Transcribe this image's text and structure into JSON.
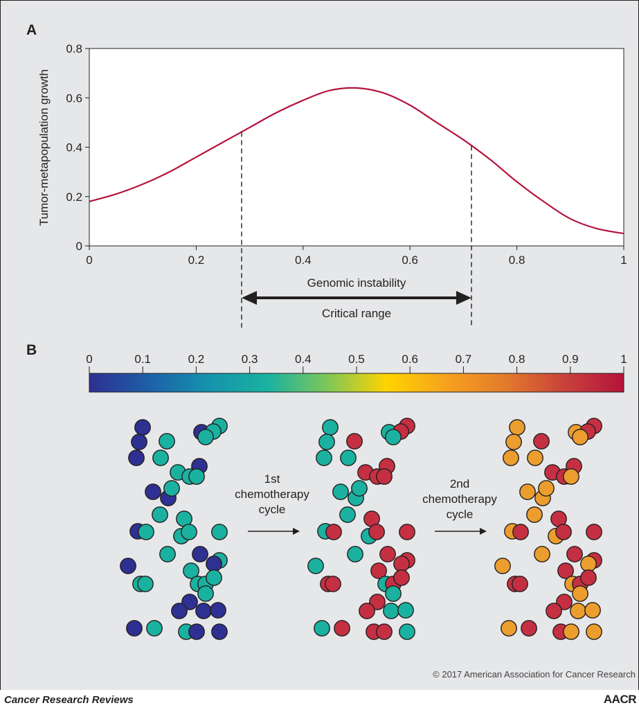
{
  "panels": {
    "a": "A",
    "b": "B"
  },
  "chart_data": {
    "type": "line",
    "xlabel": "Genomic instability",
    "ylabel": "Tumor-metapopulation growth",
    "xlim": [
      0,
      1
    ],
    "ylim": [
      0,
      0.8
    ],
    "xticks": [
      "0",
      "0.2",
      "0.4",
      "0.6",
      "0.8",
      "1"
    ],
    "yticks": [
      "0",
      "0.2",
      "0.4",
      "0.6",
      "0.8"
    ],
    "grid": false,
    "series": [
      {
        "color": "#b5133b",
        "x": [
          0,
          0.05,
          0.1,
          0.15,
          0.2,
          0.25,
          0.3,
          0.35,
          0.4,
          0.45,
          0.5,
          0.55,
          0.6,
          0.65,
          0.7,
          0.75,
          0.8,
          0.85,
          0.9,
          0.95,
          1.0
        ],
        "y": [
          0.18,
          0.21,
          0.25,
          0.3,
          0.36,
          0.42,
          0.48,
          0.54,
          0.59,
          0.63,
          0.64,
          0.62,
          0.57,
          0.5,
          0.43,
          0.35,
          0.26,
          0.18,
          0.11,
          0.07,
          0.05
        ]
      }
    ],
    "critical_range": {
      "label": "Critical range",
      "start": 0.285,
      "end": 0.715
    }
  },
  "colorbar": {
    "ticks": [
      "0",
      "0.1",
      "0.2",
      "0.3",
      "0.4",
      "0.5",
      "0.6",
      "0.7",
      "0.8",
      "0.9",
      "1"
    ],
    "stops": [
      "#2e3092",
      "#1e5fa8",
      "#1592ad",
      "#19b2a0",
      "#7cc65a",
      "#ffd400",
      "#f6a21e",
      "#e37b2b",
      "#c8423c",
      "#b5133b"
    ]
  },
  "cell_colors": {
    "navy": "#2e3192",
    "teal": "#1bb1a0",
    "red": "#c43042",
    "orange": "#eb9d2e"
  },
  "steps": [
    {
      "line1": "1st",
      "line2": "chemotherapy",
      "line3": "cycle"
    },
    {
      "line1": "2nd",
      "line2": "chemotherapy",
      "line3": "cycle"
    }
  ],
  "copyright": "© 2017 American Association for Cancer Research",
  "footer": {
    "journal": "Cancer Research Reviews",
    "logo": "AACR"
  }
}
